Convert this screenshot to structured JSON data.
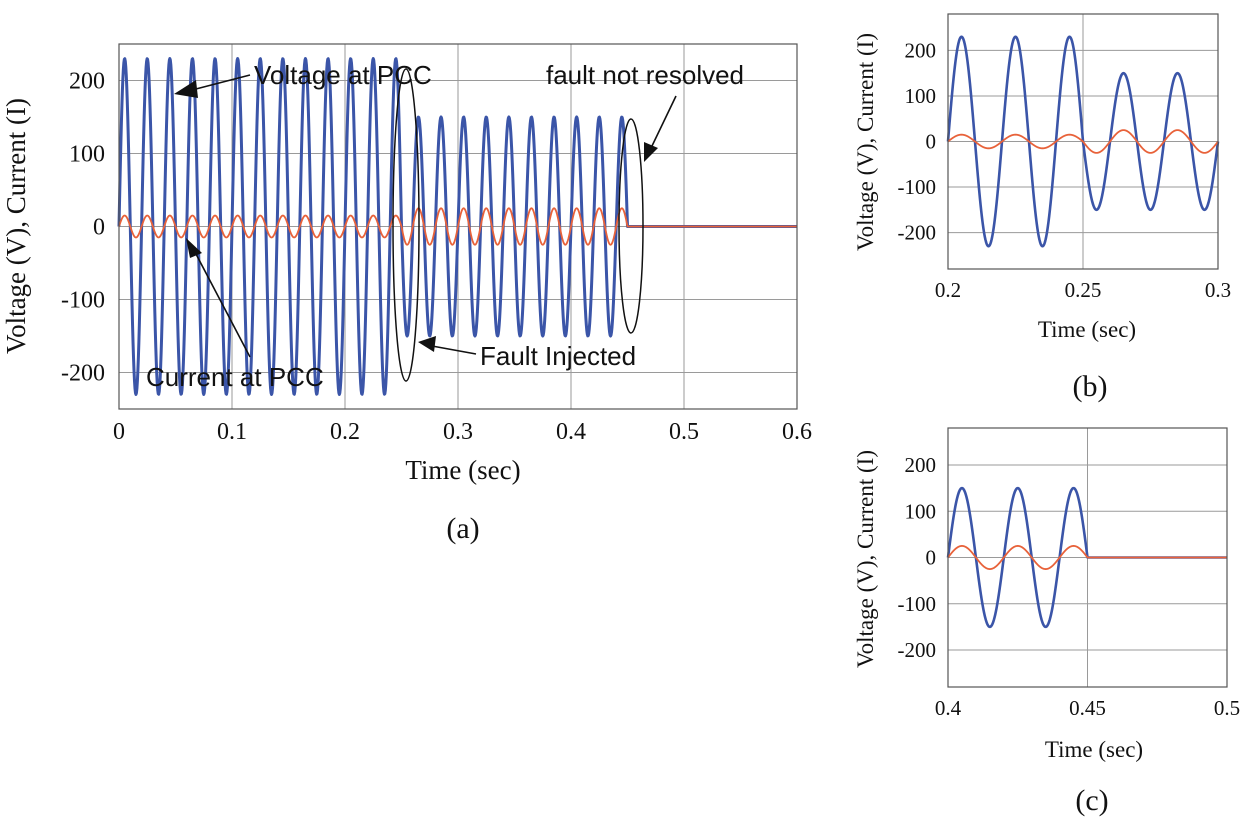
{
  "chart_data": [
    {
      "id": "a",
      "type": "line",
      "panel_label": "(a)",
      "xlabel": "Time (sec)",
      "ylabel": "Voltage (V), Current (I)",
      "xlim": [
        0,
        0.6
      ],
      "ylim": [
        -250,
        250
      ],
      "xticks": [
        0,
        0.1,
        0.2,
        0.3,
        0.4,
        0.5,
        0.6
      ],
      "xtick_labels": [
        "0",
        "0.1",
        "0.2",
        "0.3",
        "0.4",
        "0.5",
        "0.6"
      ],
      "yticks": [
        -200,
        -100,
        0,
        100,
        200
      ],
      "ytick_labels": [
        "-200",
        "-100",
        "0",
        "100",
        "200"
      ],
      "grid": true,
      "series": [
        {
          "key": "voltage",
          "color": "#3b55a8",
          "segments": [
            {
              "t_start": 0,
              "t_end": 0.25,
              "amplitude": 230,
              "frequency_hz": 50
            },
            {
              "t_start": 0.25,
              "t_end": 0.45,
              "amplitude": 150,
              "frequency_hz": 50
            },
            {
              "t_start": 0.45,
              "t_end": 0.6,
              "amplitude": 0,
              "frequency_hz": 50
            }
          ]
        },
        {
          "key": "current",
          "color": "#e8623a",
          "segments": [
            {
              "t_start": 0,
              "t_end": 0.25,
              "amplitude": 15,
              "frequency_hz": 50
            },
            {
              "t_start": 0.25,
              "t_end": 0.45,
              "amplitude": 25,
              "frequency_hz": 50
            },
            {
              "t_start": 0.45,
              "t_end": 0.6,
              "amplitude": 0,
              "frequency_hz": 50
            }
          ]
        }
      ],
      "annotations": {
        "voltage_label": "Voltage at PCC",
        "current_label": "Current at PCC",
        "fault_injected": "Fault Injected",
        "fault_not_resolved": "fault not resolved",
        "fault_injected_time": 0.25,
        "fault_not_resolved_time": 0.45
      }
    },
    {
      "id": "b",
      "type": "line",
      "panel_label": "(b)",
      "xlabel": "Time (sec)",
      "ylabel": "Voltage (V), Current (I)",
      "xlim": [
        0.2,
        0.3
      ],
      "ylim": [
        -280,
        280
      ],
      "xticks": [
        0.2,
        0.25,
        0.3
      ],
      "xtick_labels": [
        "0.2",
        "0.25",
        "0.3"
      ],
      "yticks": [
        -200,
        -100,
        0,
        100,
        200
      ],
      "ytick_labels": [
        "-200",
        "-100",
        "0",
        "100",
        "200"
      ],
      "grid": true,
      "series": [
        {
          "key": "voltage",
          "color": "#3b55a8",
          "segments": [
            {
              "t_start": 0.2,
              "t_end": 0.25,
              "amplitude": 230,
              "frequency_hz": 50
            },
            {
              "t_start": 0.25,
              "t_end": 0.3,
              "amplitude": 150,
              "frequency_hz": 50
            }
          ]
        },
        {
          "key": "current",
          "color": "#e8623a",
          "segments": [
            {
              "t_start": 0.2,
              "t_end": 0.25,
              "amplitude": 15,
              "frequency_hz": 50
            },
            {
              "t_start": 0.25,
              "t_end": 0.3,
              "amplitude": 25,
              "frequency_hz": 50
            }
          ]
        }
      ]
    },
    {
      "id": "c",
      "type": "line",
      "panel_label": "(c)",
      "xlabel": "Time (sec)",
      "ylabel": "Voltage (V), Current (I)",
      "xlim": [
        0.4,
        0.5
      ],
      "ylim": [
        -280,
        280
      ],
      "xticks": [
        0.4,
        0.45,
        0.5
      ],
      "xtick_labels": [
        "0.4",
        "0.45",
        "0.5"
      ],
      "yticks": [
        -200,
        -100,
        0,
        100,
        200
      ],
      "ytick_labels": [
        "-200",
        "-100",
        "0",
        "100",
        "200"
      ],
      "grid": true,
      "series": [
        {
          "key": "voltage",
          "color": "#3b55a8",
          "segments": [
            {
              "t_start": 0.4,
              "t_end": 0.45,
              "amplitude": 150,
              "frequency_hz": 50
            },
            {
              "t_start": 0.45,
              "t_end": 0.5,
              "amplitude": 0,
              "frequency_hz": 50
            }
          ]
        },
        {
          "key": "current",
          "color": "#e8623a",
          "segments": [
            {
              "t_start": 0.4,
              "t_end": 0.45,
              "amplitude": 25,
              "frequency_hz": 50
            },
            {
              "t_start": 0.45,
              "t_end": 0.5,
              "amplitude": 0,
              "frequency_hz": 50
            }
          ]
        }
      ]
    }
  ]
}
